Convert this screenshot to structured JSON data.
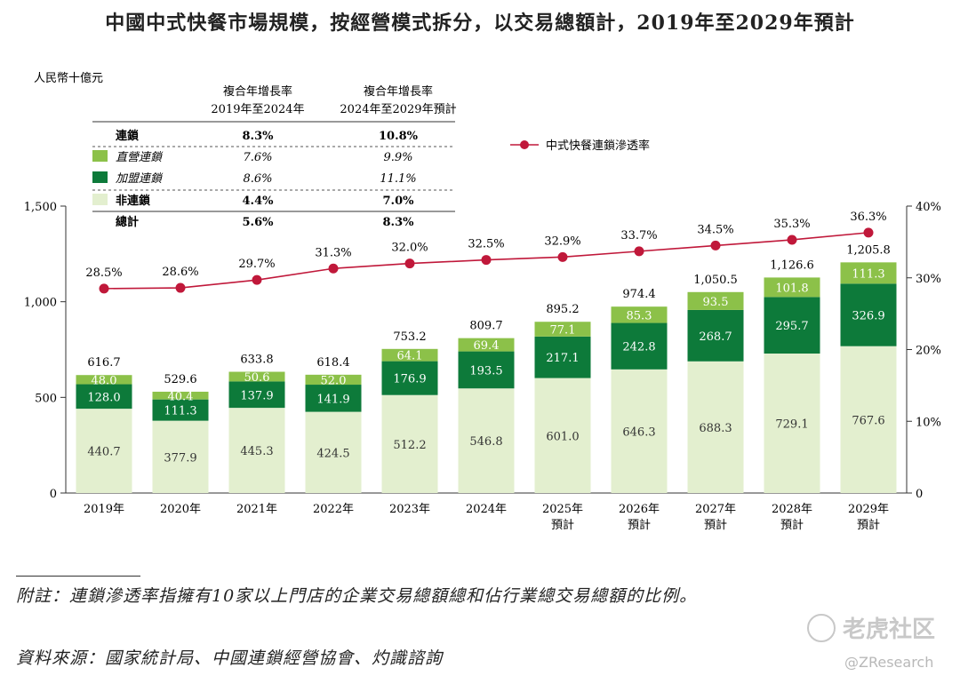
{
  "title": "中國中式快餐市場規模，按經營模式拆分，以交易總額計，2019年至2029年預計",
  "unit_label": "人民幣十億元",
  "cagr_table": {
    "headers": [
      "複合年增長率\n2019年至2024年",
      "複合年增長率\n2024年至2029年預計"
    ],
    "rows": [
      {
        "label": "連鎖",
        "v1": "8.3%",
        "v2": "10.8%",
        "swatch": "",
        "bold": true,
        "italic": false
      },
      {
        "label": "直營連鎖",
        "v1": "7.6%",
        "v2": "9.9%",
        "swatch": "#8cc149",
        "bold": false,
        "italic": true
      },
      {
        "label": "加盟連鎖",
        "v1": "8.6%",
        "v2": "11.1%",
        "swatch": "#0d7a3a",
        "bold": false,
        "italic": true
      },
      {
        "label": "非連鎖",
        "v1": "4.4%",
        "v2": "7.0%",
        "swatch": "#e3efcf",
        "bold": true,
        "italic": false
      },
      {
        "label": "總計",
        "v1": "5.6%",
        "v2": "8.3%",
        "swatch": "",
        "bold": true,
        "italic": false
      }
    ]
  },
  "line_legend": "中式快餐連鎖滲透率",
  "chart_data": {
    "type": "bar",
    "stacked": true,
    "categories": [
      "2019年",
      "2020年",
      "2021年",
      "2022年",
      "2023年",
      "2024年",
      "2025年\n預計",
      "2026年\n預計",
      "2027年\n預計",
      "2028年\n預計",
      "2029年\n預計"
    ],
    "series": [
      {
        "name": "非連鎖",
        "color": "#e3efcf",
        "values": [
          440.7,
          377.9,
          445.3,
          424.5,
          512.2,
          546.8,
          601.0,
          646.3,
          688.3,
          729.1,
          767.6
        ]
      },
      {
        "name": "加盟連鎖",
        "color": "#0d7a3a",
        "values": [
          128.0,
          111.3,
          137.9,
          141.9,
          176.9,
          193.5,
          217.1,
          242.8,
          268.7,
          295.7,
          326.9
        ]
      },
      {
        "name": "直營連鎖",
        "color": "#8cc149",
        "values": [
          48.0,
          40.4,
          50.6,
          52.0,
          64.1,
          69.4,
          77.1,
          85.3,
          93.5,
          101.8,
          111.3
        ]
      }
    ],
    "totals": [
      "616.7",
      "529.6",
      "633.8",
      "618.4",
      "753.2",
      "809.7",
      "895.2",
      "974.4",
      "1,050.5",
      "1,126.6",
      "1,205.8"
    ],
    "line": {
      "name": "中式快餐連鎖滲透率",
      "color": "#c0183a",
      "values": [
        28.5,
        28.6,
        29.7,
        31.3,
        32.0,
        32.5,
        32.9,
        33.7,
        34.5,
        35.3,
        36.3
      ],
      "labels": [
        "28.5%",
        "28.6%",
        "29.7%",
        "31.3%",
        "32.0%",
        "32.5%",
        "32.9%",
        "33.7%",
        "34.5%",
        "35.3%",
        "36.3%"
      ]
    },
    "y_left": {
      "ticks": [
        0,
        500,
        1000,
        1500
      ],
      "tick_labels": [
        "0",
        "500",
        "1,000",
        "1,500"
      ],
      "ylim": [
        0,
        1500
      ]
    },
    "y_right": {
      "ticks": [
        0,
        10,
        20,
        30,
        40
      ],
      "tick_labels": [
        "0",
        "10%",
        "20%",
        "30%",
        "40%"
      ],
      "ylim": [
        0,
        40
      ]
    }
  },
  "footnote": "附註：連鎖滲透率指擁有10家以上門店的企業交易總額總和佔行業總交易總額的比例。",
  "source": "資料來源：國家統計局、中國連鎖經營協會、灼識諮詢",
  "watermark": {
    "text": "老虎社区",
    "sub": "@ZResearch"
  }
}
